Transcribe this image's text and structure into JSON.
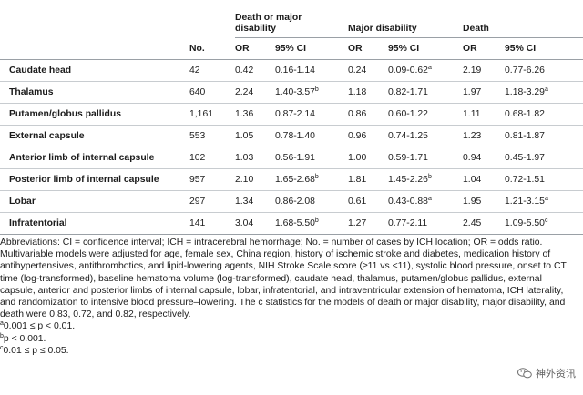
{
  "table": {
    "groups": [
      "Death or major disability",
      "Major disability",
      "Death"
    ],
    "col_headers": [
      "No.",
      "OR",
      "95% CI",
      "OR",
      "95% CI",
      "OR",
      "95% CI"
    ],
    "rows": [
      {
        "location": "Caudate head",
        "no": "42",
        "or1": "0.42",
        "ci1": "0.16-1.14",
        "sup1": "",
        "or2": "0.24",
        "ci2": "0.09-0.62",
        "sup2": "a",
        "or3": "2.19",
        "ci3": "0.77-6.26",
        "sup3": ""
      },
      {
        "location": "Thalamus",
        "no": "640",
        "or1": "2.24",
        "ci1": "1.40-3.57",
        "sup1": "b",
        "or2": "1.18",
        "ci2": "0.82-1.71",
        "sup2": "",
        "or3": "1.97",
        "ci3": "1.18-3.29",
        "sup3": "a"
      },
      {
        "location": "Putamen/globus pallidus",
        "no": "1,161",
        "or1": "1.36",
        "ci1": "0.87-2.14",
        "sup1": "",
        "or2": "0.86",
        "ci2": "0.60-1.22",
        "sup2": "",
        "or3": "1.11",
        "ci3": "0.68-1.82",
        "sup3": ""
      },
      {
        "location": "External capsule",
        "no": "553",
        "or1": "1.05",
        "ci1": "0.78-1.40",
        "sup1": "",
        "or2": "0.96",
        "ci2": "0.74-1.25",
        "sup2": "",
        "or3": "1.23",
        "ci3": "0.81-1.87",
        "sup3": ""
      },
      {
        "location": "Anterior limb of internal capsule",
        "no": "102",
        "or1": "1.03",
        "ci1": "0.56-1.91",
        "sup1": "",
        "or2": "1.00",
        "ci2": "0.59-1.71",
        "sup2": "",
        "or3": "0.94",
        "ci3": "0.45-1.97",
        "sup3": ""
      },
      {
        "location": "Posterior limb of internal capsule",
        "no": "957",
        "or1": "2.10",
        "ci1": "1.65-2.68",
        "sup1": "b",
        "or2": "1.81",
        "ci2": "1.45-2.26",
        "sup2": "b",
        "or3": "1.04",
        "ci3": "0.72-1.51",
        "sup3": ""
      },
      {
        "location": "Lobar",
        "no": "297",
        "or1": "1.34",
        "ci1": "0.86-2.08",
        "sup1": "",
        "or2": "0.61",
        "ci2": "0.43-0.88",
        "sup2": "a",
        "or3": "1.95",
        "ci3": "1.21-3.15",
        "sup3": "a"
      },
      {
        "location": "Infratentorial",
        "no": "141",
        "or1": "3.04",
        "ci1": "1.68-5.50",
        "sup1": "b",
        "or2": "1.27",
        "ci2": "0.77-2.11",
        "sup2": "",
        "or3": "2.45",
        "ci3": "1.09-5.50",
        "sup3": "c"
      }
    ]
  },
  "notes": {
    "abbreviations": "Abbreviations: CI = confidence interval; ICH = intracerebral hemorrhage; No. = number of cases by ICH location; OR = odds ratio.",
    "multivariable": "Multivariable models were adjusted for age, female sex, China region, history of ischemic stroke and diabetes, medication history of antihypertensives, antithrombotics, and lipid-lowering agents, NIH Stroke Scale score (≥11 vs <11), systolic blood pressure, onset to CT time (log-transformed), baseline hematoma volume (log-transformed), caudate head, thalamus, putamen/globus pallidus, external capsule, anterior and posterior limbs of internal capsule, lobar, infratentorial, and intraventricular extension of hematoma, ICH laterality, and randomization to intensive blood pressure–lowering. The c statistics for the models of death or major disability, major disability, and death were 0.83, 0.72, and 0.82, respectively.",
    "footnotes": [
      {
        "mark": "a",
        "text": "0.001 ≤ p < 0.01."
      },
      {
        "mark": "b",
        "text": "p < 0.001."
      },
      {
        "mark": "c",
        "text": "0.01 ≤ p ≤ 0.05."
      }
    ]
  },
  "watermark": {
    "text": "神外资讯",
    "icon": "wechat-logo-icon"
  }
}
